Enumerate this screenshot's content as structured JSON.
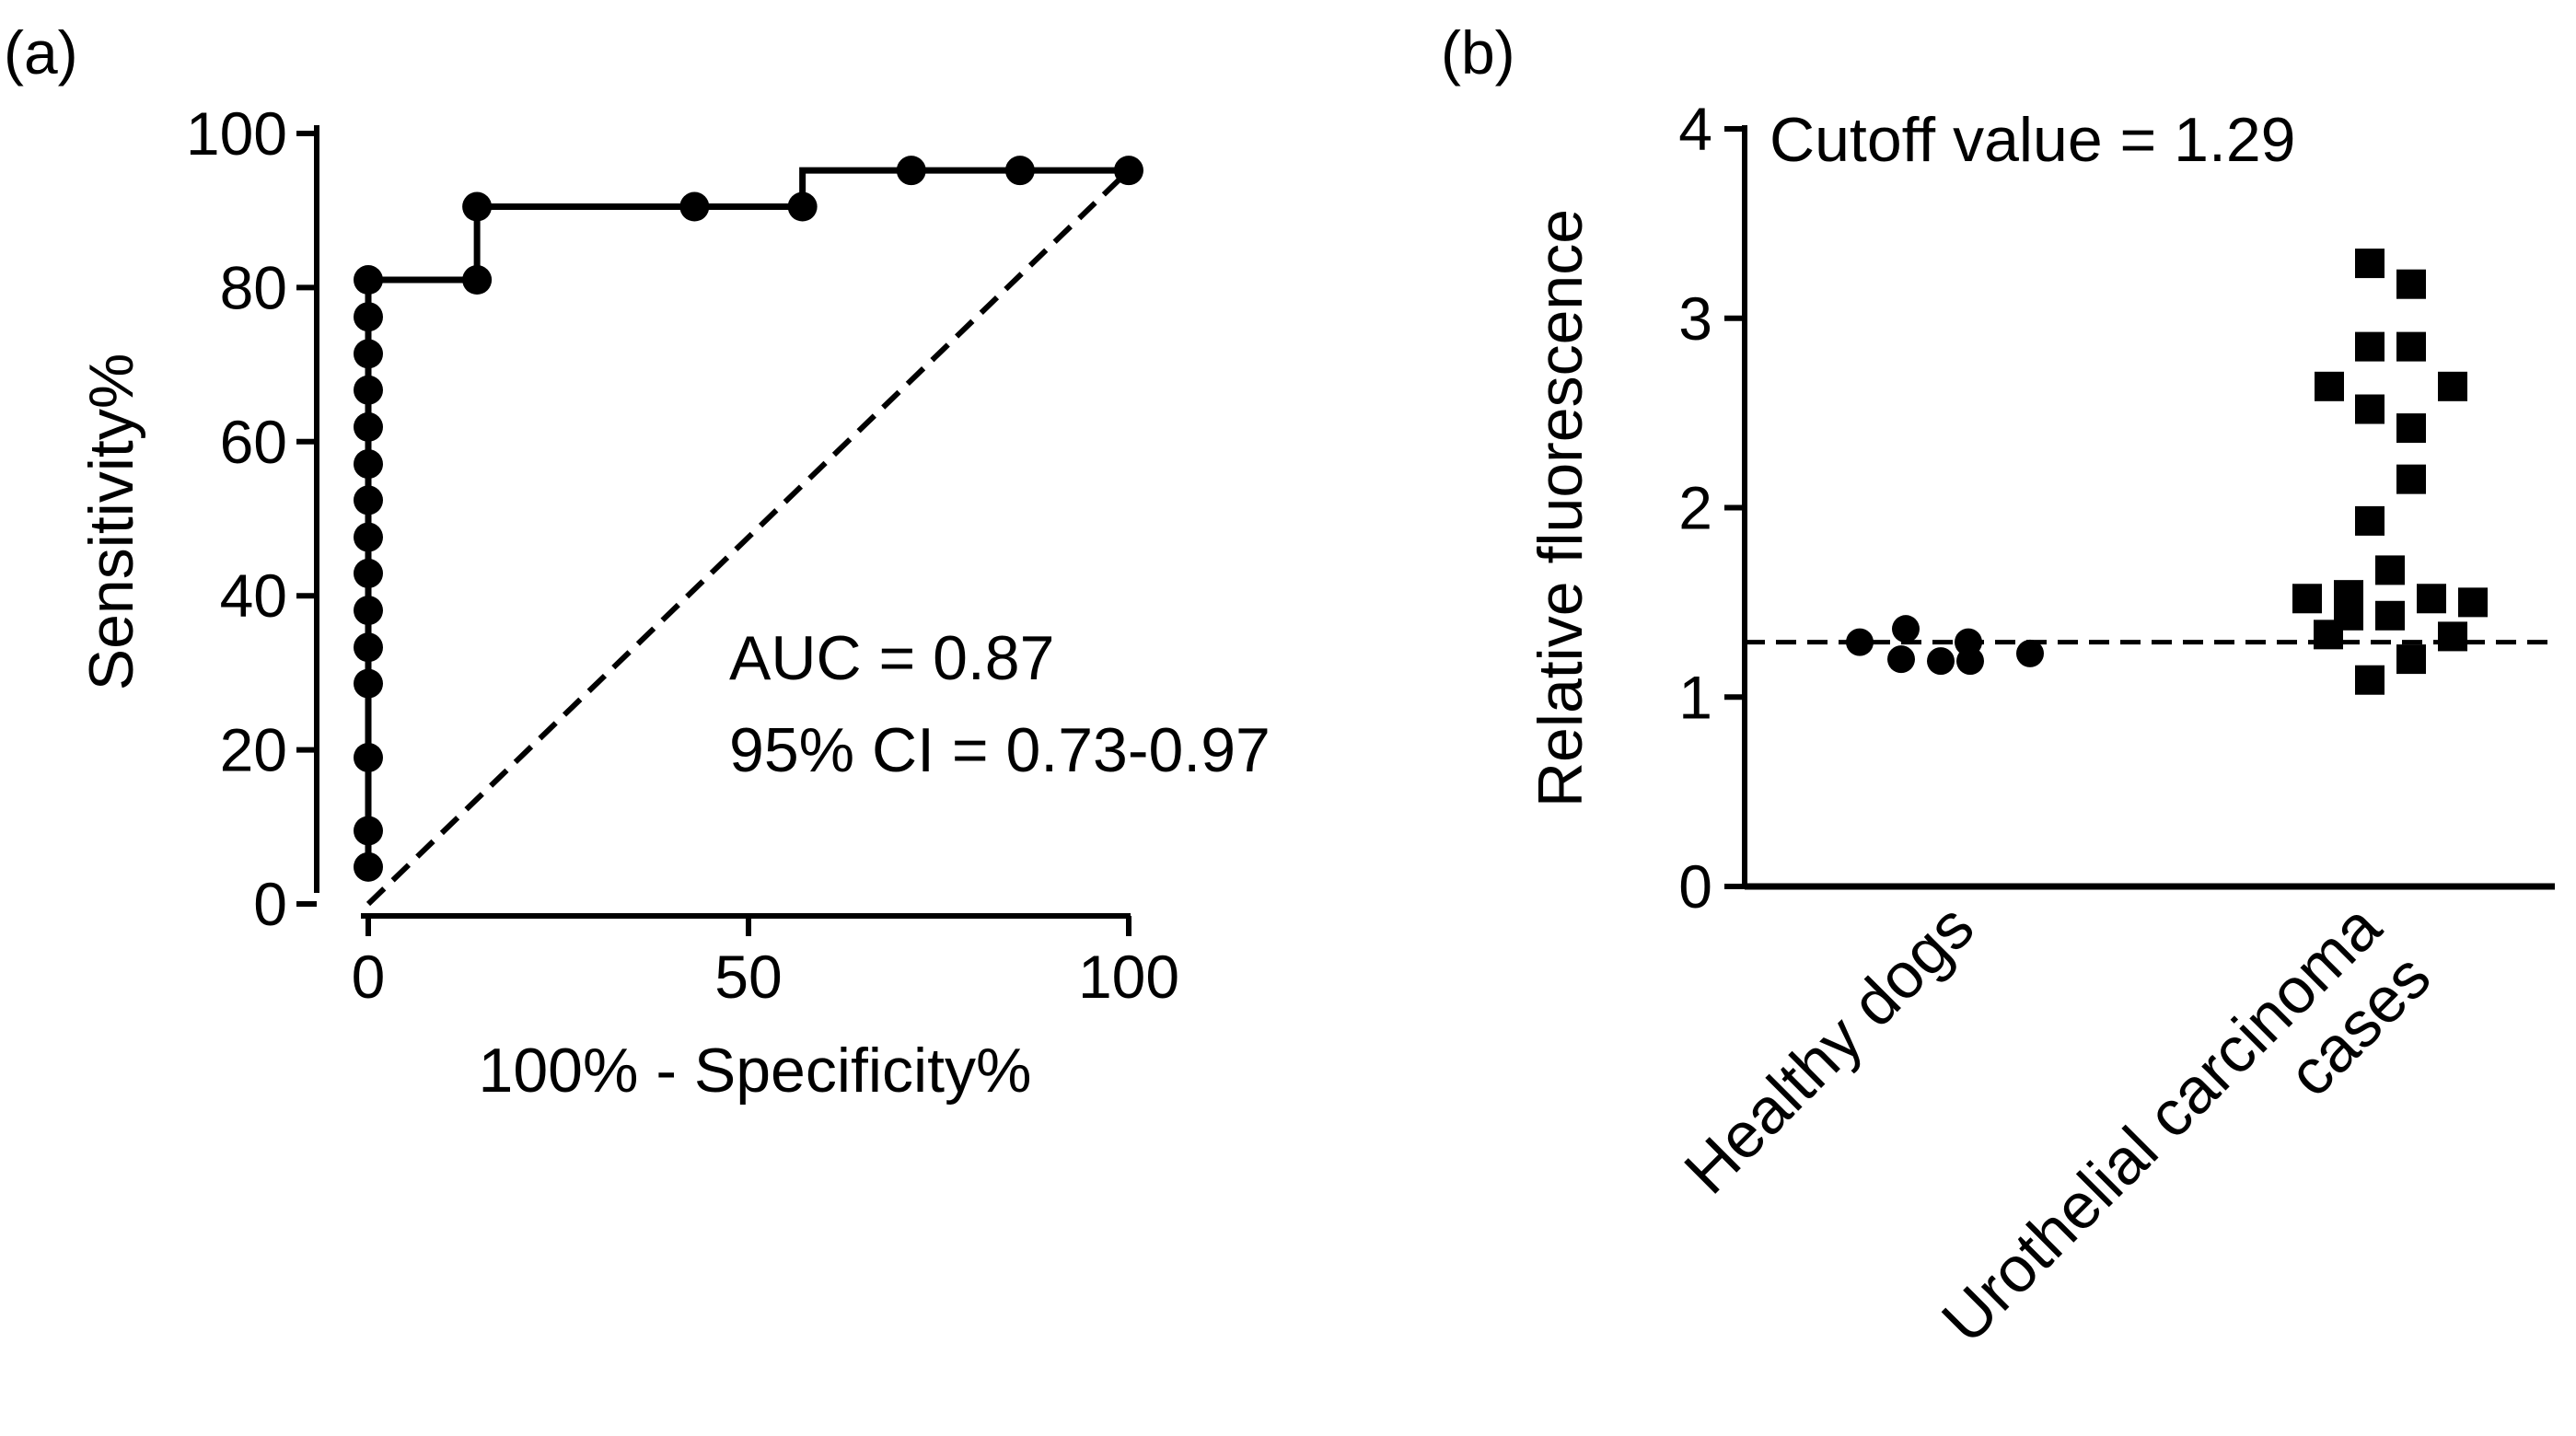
{
  "chart_data": [
    {
      "panel_label": "(a)",
      "type": "line",
      "subtype": "roc",
      "xlabel": "100% - Specificity%",
      "ylabel": "Sensitivity%",
      "xlim": [
        0,
        100
      ],
      "ylim": [
        0,
        100
      ],
      "xticks": [
        0,
        50,
        100
      ],
      "yticks": [
        0,
        20,
        40,
        60,
        80,
        100
      ],
      "series": [
        {
          "name": "ROC curve",
          "style": "solid",
          "markers": true,
          "x": [
            0,
            0,
            0,
            0,
            0,
            0,
            0,
            0,
            0,
            0,
            0,
            0,
            0,
            0,
            0,
            14.3,
            14.3,
            42.9,
            57.1,
            71.4,
            85.7,
            100
          ],
          "y": [
            4.8,
            9.5,
            19.0,
            28.6,
            33.3,
            38.1,
            42.9,
            47.6,
            52.4,
            57.1,
            61.9,
            66.7,
            71.4,
            76.2,
            81.0,
            81.0,
            90.5,
            90.5,
            90.5,
            95.2,
            95.2,
            95.2
          ]
        },
        {
          "name": "Reference line",
          "style": "dashed",
          "markers": false,
          "x": [
            0,
            100
          ],
          "y": [
            0,
            95.2
          ]
        }
      ],
      "annotations": [
        "AUC = 0.87",
        "95% CI = 0.73-0.97"
      ]
    },
    {
      "panel_label": "(b)",
      "type": "scatter",
      "subtype": "dot-plot",
      "ylabel": "Relative fluorescence",
      "ylim": [
        0,
        4
      ],
      "yticks": [
        0,
        1,
        2,
        3,
        4
      ],
      "categories": [
        "Healthy dogs",
        "Urothelial carcinoma cases"
      ],
      "cutoff_value": 1.29,
      "annotation": "Cutoff value = 1.29",
      "groups": [
        {
          "name": "Healthy dogs",
          "marker": "circle",
          "values": [
            1.29,
            1.36,
            1.29,
            1.2,
            1.19,
            1.19,
            1.23
          ]
        },
        {
          "name": "Urothelial carcinoma cases",
          "marker": "square",
          "values": [
            3.29,
            3.18,
            2.85,
            2.85,
            2.64,
            2.64,
            2.52,
            2.42,
            2.15,
            1.93,
            1.67,
            1.54,
            1.52,
            1.52,
            1.5,
            1.43,
            1.43,
            1.33,
            1.32,
            1.2,
            1.09
          ]
        }
      ]
    }
  ]
}
